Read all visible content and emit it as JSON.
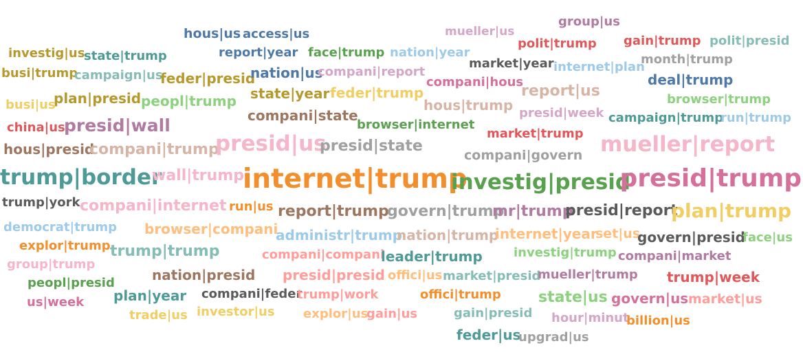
{
  "colors": {
    "teal": "#4e9a96",
    "orange": "#f28e2b",
    "pink": "#d4709a",
    "lightpink": "#f4b6c8",
    "green": "#59a14f",
    "lightgreen": "#8cd17d",
    "blue": "#4e79a7",
    "lightblue": "#9ecae9",
    "olive": "#b6992d",
    "yellow": "#f1ce63",
    "brown": "#9d7660",
    "tan": "#d7b5a6",
    "gray": "#a0a0a0",
    "dark": "#5a5a5a",
    "red": "#e15759",
    "salmon": "#ff9d9a",
    "purple": "#b07aa1",
    "lightpurple": "#d4a6c8",
    "lightorange": "#ffbe7d",
    "seagreen": "#86bcb6"
  },
  "words": [
    {
      "text": "hous|us"
    },
    {
      "text": "access|us"
    },
    {
      "text": "mueller|us"
    },
    {
      "text": "group|us"
    },
    {
      "text": "investig|us"
    },
    {
      "text": "state|trump"
    },
    {
      "text": "report|year"
    },
    {
      "text": "face|trump"
    },
    {
      "text": "nation|year"
    },
    {
      "text": "polit|trump"
    },
    {
      "text": "gain|trump"
    },
    {
      "text": "polit|presid"
    },
    {
      "text": "busi|trump"
    },
    {
      "text": "campaign|us"
    },
    {
      "text": "feder|presid"
    },
    {
      "text": "nation|us"
    },
    {
      "text": "compani|report"
    },
    {
      "text": "market|year"
    },
    {
      "text": "internet|plan"
    },
    {
      "text": "month|trump"
    },
    {
      "text": "deal|trump"
    },
    {
      "text": "compani|hous"
    },
    {
      "text": "plan|presid"
    },
    {
      "text": "state|year"
    },
    {
      "text": "feder|trump"
    },
    {
      "text": "report|us"
    },
    {
      "text": "busi|us"
    },
    {
      "text": "peopl|trump"
    },
    {
      "text": "hous|trump"
    },
    {
      "text": "browser|trump"
    },
    {
      "text": "presid|week"
    },
    {
      "text": "compani|state"
    },
    {
      "text": "campaign|trump"
    },
    {
      "text": "run|trump"
    },
    {
      "text": "china|us"
    },
    {
      "text": "presid|wall"
    },
    {
      "text": "browser|internet"
    },
    {
      "text": "market|trump"
    },
    {
      "text": "hous|presid"
    },
    {
      "text": "compani|trump"
    },
    {
      "text": "presid|us"
    },
    {
      "text": "presid|state"
    },
    {
      "text": "mueller|report"
    },
    {
      "text": "compani|govern"
    },
    {
      "text": "trump|border"
    },
    {
      "text": "wall|trump"
    },
    {
      "text": "internet|trump"
    },
    {
      "text": "investig|presid"
    },
    {
      "text": "presid|trump"
    },
    {
      "text": "trump|york"
    },
    {
      "text": "compani|internet"
    },
    {
      "text": "run|us"
    },
    {
      "text": "report|trump"
    },
    {
      "text": "govern|trump"
    },
    {
      "text": "mr|trump"
    },
    {
      "text": "presid|report"
    },
    {
      "text": "plan|trump"
    },
    {
      "text": "democrat|trump"
    },
    {
      "text": "browser|compani"
    },
    {
      "text": "administr|trump"
    },
    {
      "text": "nation|trump"
    },
    {
      "text": "internet|year"
    },
    {
      "text": "set|us"
    },
    {
      "text": "govern|presid"
    },
    {
      "text": "face|us"
    },
    {
      "text": "explor|trump"
    },
    {
      "text": "trump|trump"
    },
    {
      "text": "compani|compani"
    },
    {
      "text": "leader|trump"
    },
    {
      "text": "investig|trump"
    },
    {
      "text": "compani|market"
    },
    {
      "text": "group|trump"
    },
    {
      "text": "nation|presid"
    },
    {
      "text": "presid|presid"
    },
    {
      "text": "offici|us"
    },
    {
      "text": "market|presid"
    },
    {
      "text": "mueller|trump"
    },
    {
      "text": "trump|week"
    },
    {
      "text": "peopl|presid"
    },
    {
      "text": "plan|year"
    },
    {
      "text": "compani|feder"
    },
    {
      "text": "trump|work"
    },
    {
      "text": "offici|trump"
    },
    {
      "text": "state|us"
    },
    {
      "text": "govern|us"
    },
    {
      "text": "market|us"
    },
    {
      "text": "us|week"
    },
    {
      "text": "trade|us"
    },
    {
      "text": "investor|us"
    },
    {
      "text": "explor|us"
    },
    {
      "text": "gain|us"
    },
    {
      "text": "gain|presid"
    },
    {
      "text": "hour|minut"
    },
    {
      "text": "billion|us"
    },
    {
      "text": "feder|us"
    },
    {
      "text": "upgrad|us"
    }
  ]
}
